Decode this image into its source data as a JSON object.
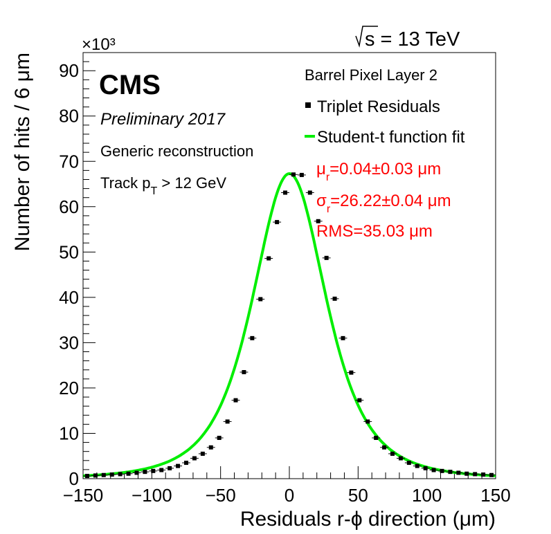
{
  "chart_data": {
    "type": "scatter",
    "title": "",
    "energy_label": "s = 13 TeV",
    "multiplier_label": "×10³",
    "xlabel": "Residuals r-ϕ direction (μm)",
    "ylabel": "Number of hits / 6 μm",
    "xlim": [
      -150,
      150
    ],
    "ylim": [
      0,
      94
    ],
    "y_unit_multiplier": 1000,
    "x_ticks": [
      -150,
      -100,
      -50,
      0,
      50,
      100,
      150
    ],
    "x_tick_labels": [
      "−150",
      "−100",
      "−50",
      "0",
      "50",
      "100",
      "150"
    ],
    "y_ticks": [
      0,
      10,
      20,
      30,
      40,
      50,
      60,
      70,
      80,
      90
    ],
    "y_tick_labels": [
      "0",
      "10",
      "20",
      "30",
      "40",
      "50",
      "60",
      "70",
      "80",
      "90"
    ],
    "grid": false,
    "legend_position": "top-right",
    "experiment": "CMS",
    "status": "Preliminary 2017",
    "annotations_left": [
      "Generic reconstruction",
      "Track p_T > 12 GeV"
    ],
    "legend_header": "Barrel Pixel Layer 2",
    "legend": [
      {
        "label": "Triplet Residuals",
        "marker": "square",
        "color": "#000000"
      },
      {
        "label": "Student-t function fit",
        "marker": "line",
        "color": "#00ee00"
      }
    ],
    "fit_results": [
      {
        "text": "μr=0.04±0.03 μm",
        "color": "#ff0000"
      },
      {
        "text": "σr=26.22±0.04 μm",
        "color": "#ff0000"
      },
      {
        "text": "RMS=35.03 μm",
        "color": "#ff0000"
      }
    ],
    "series": [
      {
        "name": "Triplet Residuals",
        "bin_width": 6,
        "x": [
          -147,
          -141,
          -135,
          -129,
          -123,
          -117,
          -111,
          -105,
          -99,
          -93,
          -87,
          -81,
          -75,
          -69,
          -63,
          -57,
          -51,
          -45,
          -39,
          -33,
          -27,
          -21,
          -15,
          -9,
          -3,
          3,
          9,
          15,
          21,
          27,
          33,
          39,
          45,
          51,
          57,
          63,
          69,
          75,
          81,
          87,
          93,
          99,
          105,
          111,
          117,
          123,
          129,
          135,
          141,
          147
        ],
        "y": [
          0.6,
          0.7,
          0.8,
          0.9,
          1.0,
          1.1,
          1.3,
          1.5,
          1.7,
          1.9,
          2.3,
          2.8,
          3.5,
          4.5,
          5.5,
          6.9,
          9.0,
          12.6,
          17.3,
          23.5,
          31.0,
          39.6,
          48.6,
          56.6,
          63.1,
          67.1,
          67.0,
          63.1,
          56.8,
          48.7,
          39.7,
          31.0,
          23.4,
          17.3,
          12.6,
          9.0,
          6.9,
          5.5,
          4.5,
          3.5,
          2.8,
          2.3,
          1.9,
          1.7,
          1.5,
          1.3,
          1.1,
          1.0,
          0.9,
          0.8
        ]
      },
      {
        "name": "Student-t function fit",
        "model": "student-t",
        "mean": 0.04,
        "sigma": 26.22,
        "peak": 67.3
      }
    ]
  }
}
